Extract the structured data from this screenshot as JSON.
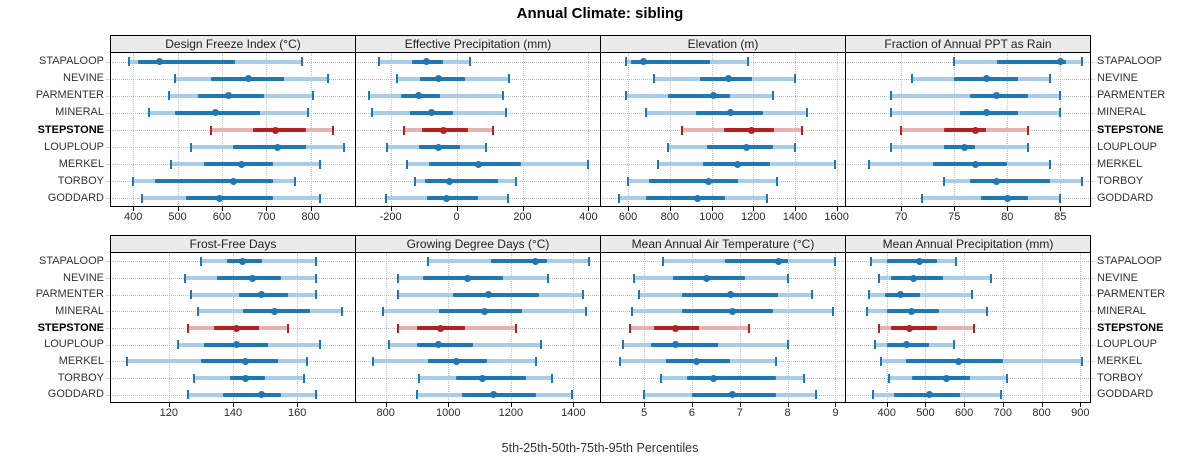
{
  "title": "Annual Climate: sibling",
  "caption": "5th-25th-50th-75th-95th Percentiles",
  "stations": [
    "STAPALOOP",
    "NEVINE",
    "PARMENTER",
    "MINERAL",
    "STEPSTONE",
    "LOUPLOUP",
    "MERKEL",
    "TORBOY",
    "GODDARD"
  ],
  "highlighted_station": "STEPSTONE",
  "colors": {
    "series_blue": "#1f77b4",
    "series_blue_light": "#a9cde6",
    "highlight_red": "#b22222",
    "highlight_red_light": "#e4b2b2",
    "strip_background": "#ebebeb",
    "grid": "#c2c2c2"
  },
  "chart_data": [
    {
      "type": "scatter",
      "style": "horizontal percentile intervals (5th-25th-50th-75th-95th), one row per station; STEPSTONE highlighted red",
      "title": "Design Freeze Index (°C)",
      "xlim": [
        350,
        900
      ],
      "ticks": [
        400,
        500,
        600,
        700,
        800
      ],
      "values": [
        [
          390,
          410,
          460,
          630,
          780
        ],
        [
          495,
          575,
          660,
          740,
          840
        ],
        [
          480,
          545,
          615,
          695,
          805
        ],
        [
          435,
          495,
          585,
          685,
          795
        ],
        [
          575,
          670,
          720,
          790,
          850
        ],
        [
          530,
          625,
          725,
          790,
          875
        ],
        [
          485,
          560,
          645,
          715,
          820
        ],
        [
          400,
          450,
          625,
          715,
          765
        ],
        [
          420,
          520,
          595,
          715,
          820
        ]
      ]
    },
    {
      "type": "scatter",
      "style": "horizontal percentile intervals",
      "title": "Effective Precipitation (mm)",
      "xlim": [
        -305,
        435
      ],
      "ticks": [
        -200,
        0,
        200,
        400
      ],
      "values": [
        [
          -235,
          -135,
          -90,
          -40,
          40
        ],
        [
          -180,
          -110,
          -55,
          25,
          160
        ],
        [
          -265,
          -170,
          -115,
          -50,
          140
        ],
        [
          -255,
          -140,
          -75,
          -10,
          150
        ],
        [
          -160,
          -105,
          -40,
          35,
          110
        ],
        [
          -210,
          -115,
          -55,
          10,
          90
        ],
        [
          -150,
          -85,
          65,
          195,
          400
        ],
        [
          -125,
          -95,
          -20,
          125,
          180
        ],
        [
          -215,
          -90,
          -30,
          65,
          155
        ]
      ]
    },
    {
      "type": "scatter",
      "style": "horizontal percentile intervals",
      "title": "Elevation (m)",
      "xlim": [
        470,
        1640
      ],
      "ticks": [
        600,
        800,
        1000,
        1200,
        1400,
        1600
      ],
      "values": [
        [
          590,
          615,
          675,
          995,
          1175
        ],
        [
          725,
          945,
          1080,
          1195,
          1400
        ],
        [
          590,
          790,
          1010,
          1090,
          1295
        ],
        [
          685,
          925,
          1090,
          1245,
          1460
        ],
        [
          860,
          1060,
          1190,
          1300,
          1435
        ],
        [
          790,
          980,
          1170,
          1295,
          1400
        ],
        [
          745,
          960,
          1125,
          1280,
          1590
        ],
        [
          600,
          700,
          985,
          1125,
          1315
        ],
        [
          555,
          685,
          935,
          1065,
          1265
        ]
      ]
    },
    {
      "type": "scatter",
      "style": "horizontal percentile intervals",
      "title": "Fraction of Annual PPT as Rain",
      "xlim": [
        64.8,
        87.8
      ],
      "ticks": [
        70,
        75,
        80,
        85
      ],
      "values": [
        [
          75,
          79,
          85,
          85.5,
          87
        ],
        [
          71,
          75,
          78,
          81,
          84
        ],
        [
          69,
          76.5,
          79,
          82,
          85
        ],
        [
          69,
          75.5,
          78,
          81,
          85
        ],
        [
          70,
          74,
          77,
          78,
          82
        ],
        [
          69,
          74,
          76,
          77,
          82
        ],
        [
          67,
          73,
          77,
          80,
          84
        ],
        [
          74,
          76.5,
          79,
          84,
          87
        ],
        [
          72,
          77.5,
          80,
          82,
          85
        ]
      ]
    },
    {
      "type": "scatter",
      "style": "horizontal percentile intervals",
      "title": "Frost-Free Days",
      "xlim": [
        102,
        178
      ],
      "ticks": [
        120,
        140,
        160
      ],
      "values": [
        [
          130,
          138,
          143,
          149,
          166
        ],
        [
          125,
          135,
          146,
          155,
          166
        ],
        [
          127,
          142,
          149,
          157,
          166
        ],
        [
          129,
          143,
          153,
          164,
          174
        ],
        [
          126,
          134,
          141,
          148,
          157
        ],
        [
          123,
          131,
          141,
          151,
          167
        ],
        [
          107,
          130,
          144,
          154,
          163
        ],
        [
          128,
          139,
          144,
          150,
          162
        ],
        [
          126,
          137,
          149,
          155,
          166
        ]
      ]
    },
    {
      "type": "scatter",
      "style": "horizontal percentile intervals",
      "title": "Growing Degree Days (°C)",
      "xlim": [
        705,
        1485
      ],
      "ticks": [
        800,
        1000,
        1200,
        1400
      ],
      "values": [
        [
          935,
          1135,
          1280,
          1315,
          1450
        ],
        [
          840,
          920,
          1060,
          1175,
          1320
        ],
        [
          840,
          1015,
          1130,
          1290,
          1430
        ],
        [
          790,
          970,
          1115,
          1235,
          1440
        ],
        [
          840,
          900,
          975,
          1055,
          1215
        ],
        [
          810,
          900,
          970,
          1080,
          1295
        ],
        [
          760,
          935,
          1025,
          1125,
          1280
        ],
        [
          905,
          1025,
          1110,
          1250,
          1330
        ],
        [
          900,
          1045,
          1145,
          1280,
          1395
        ]
      ]
    },
    {
      "type": "scatter",
      "style": "horizontal percentile intervals",
      "title": "Mean Annual Air Temperature (°C)",
      "xlim": [
        4.1,
        9.2
      ],
      "ticks": [
        5,
        6,
        7,
        8,
        9
      ],
      "values": [
        [
          5.4,
          6.7,
          7.8,
          8.0,
          9.0
        ],
        [
          4.8,
          5.6,
          6.3,
          7.1,
          8.0
        ],
        [
          4.9,
          5.8,
          6.8,
          7.8,
          8.5
        ],
        [
          4.75,
          5.8,
          6.85,
          7.7,
          8.95
        ],
        [
          4.7,
          5.2,
          5.65,
          6.15,
          7.2
        ],
        [
          4.55,
          5.15,
          5.65,
          6.55,
          8.0
        ],
        [
          4.5,
          5.45,
          6.1,
          6.8,
          7.75
        ],
        [
          5.35,
          5.9,
          6.45,
          7.75,
          8.35
        ],
        [
          5.0,
          6.0,
          6.85,
          7.75,
          8.6
        ]
      ]
    },
    {
      "type": "scatter",
      "style": "horizontal percentile intervals",
      "title": "Mean Annual Precipitation (mm)",
      "xlim": [
        295,
        925
      ],
      "ticks": [
        400,
        500,
        600,
        700,
        800,
        900
      ],
      "values": [
        [
          360,
          400,
          485,
          530,
          580
        ],
        [
          380,
          410,
          470,
          545,
          670
        ],
        [
          355,
          395,
          435,
          485,
          620
        ],
        [
          350,
          400,
          465,
          535,
          660
        ],
        [
          380,
          410,
          460,
          530,
          625
        ],
        [
          370,
          400,
          450,
          510,
          575
        ],
        [
          385,
          450,
          585,
          700,
          905
        ],
        [
          405,
          465,
          555,
          615,
          710
        ],
        [
          365,
          420,
          510,
          590,
          695
        ]
      ]
    }
  ]
}
